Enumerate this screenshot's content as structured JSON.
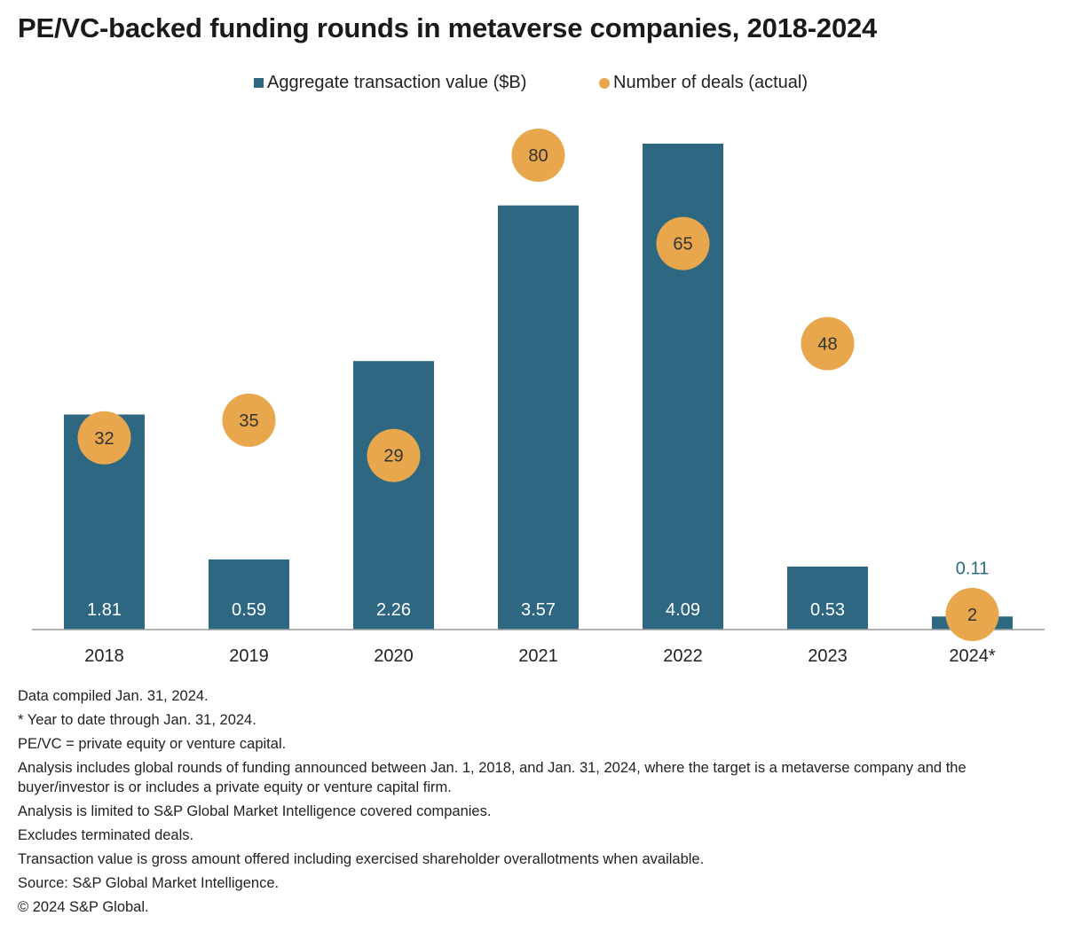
{
  "title": "PE/VC-backed funding rounds in metaverse companies, 2018-2024",
  "legend": {
    "bar_label": "Aggregate transaction value ($B)",
    "dot_label": "Number of deals (actual)"
  },
  "colors": {
    "bar": "#2d6782",
    "dot": "#e8a74c",
    "bar_label_inside": "#ffffff",
    "bar_label_outside": "#2d6782"
  },
  "chart_data": {
    "type": "bar",
    "categories": [
      "2018",
      "2019",
      "2020",
      "2021",
      "2022",
      "2023",
      "2024*"
    ],
    "series": [
      {
        "name": "Aggregate transaction value ($B)",
        "type": "bar",
        "values": [
          1.81,
          0.59,
          2.26,
          3.57,
          4.09,
          0.53,
          0.11
        ],
        "labels": [
          "1.81",
          "0.59",
          "2.26",
          "3.57",
          "4.09",
          "0.53",
          "0.11"
        ]
      },
      {
        "name": "Number of deals (actual)",
        "type": "scatter",
        "axis": "secondary",
        "values": [
          32,
          35,
          29,
          80,
          65,
          48,
          2
        ],
        "labels": [
          "32",
          "35",
          "29",
          "80",
          "65",
          "48",
          "2"
        ]
      }
    ],
    "ylim": [
      0,
      4.4
    ],
    "y2lim": [
      0,
      104
    ],
    "grid": false,
    "legend_position": "top"
  },
  "notes": [
    "Data compiled Jan. 31, 2024.",
    "* Year to date through Jan. 31, 2024.",
    "PE/VC = private equity or venture capital.",
    "Analysis includes global rounds of funding announced between Jan. 1, 2018, and Jan. 31, 2024, where the target is a metaverse company and the buyer/investor is or includes a private equity or venture capital firm.",
    "Analysis is limited to S&P Global Market Intelligence covered companies.",
    "Excludes terminated deals.",
    "Transaction value is gross amount offered including exercised shareholder overallotments when available.",
    "Source: S&P Global Market Intelligence.",
    "© 2024 S&P Global."
  ]
}
